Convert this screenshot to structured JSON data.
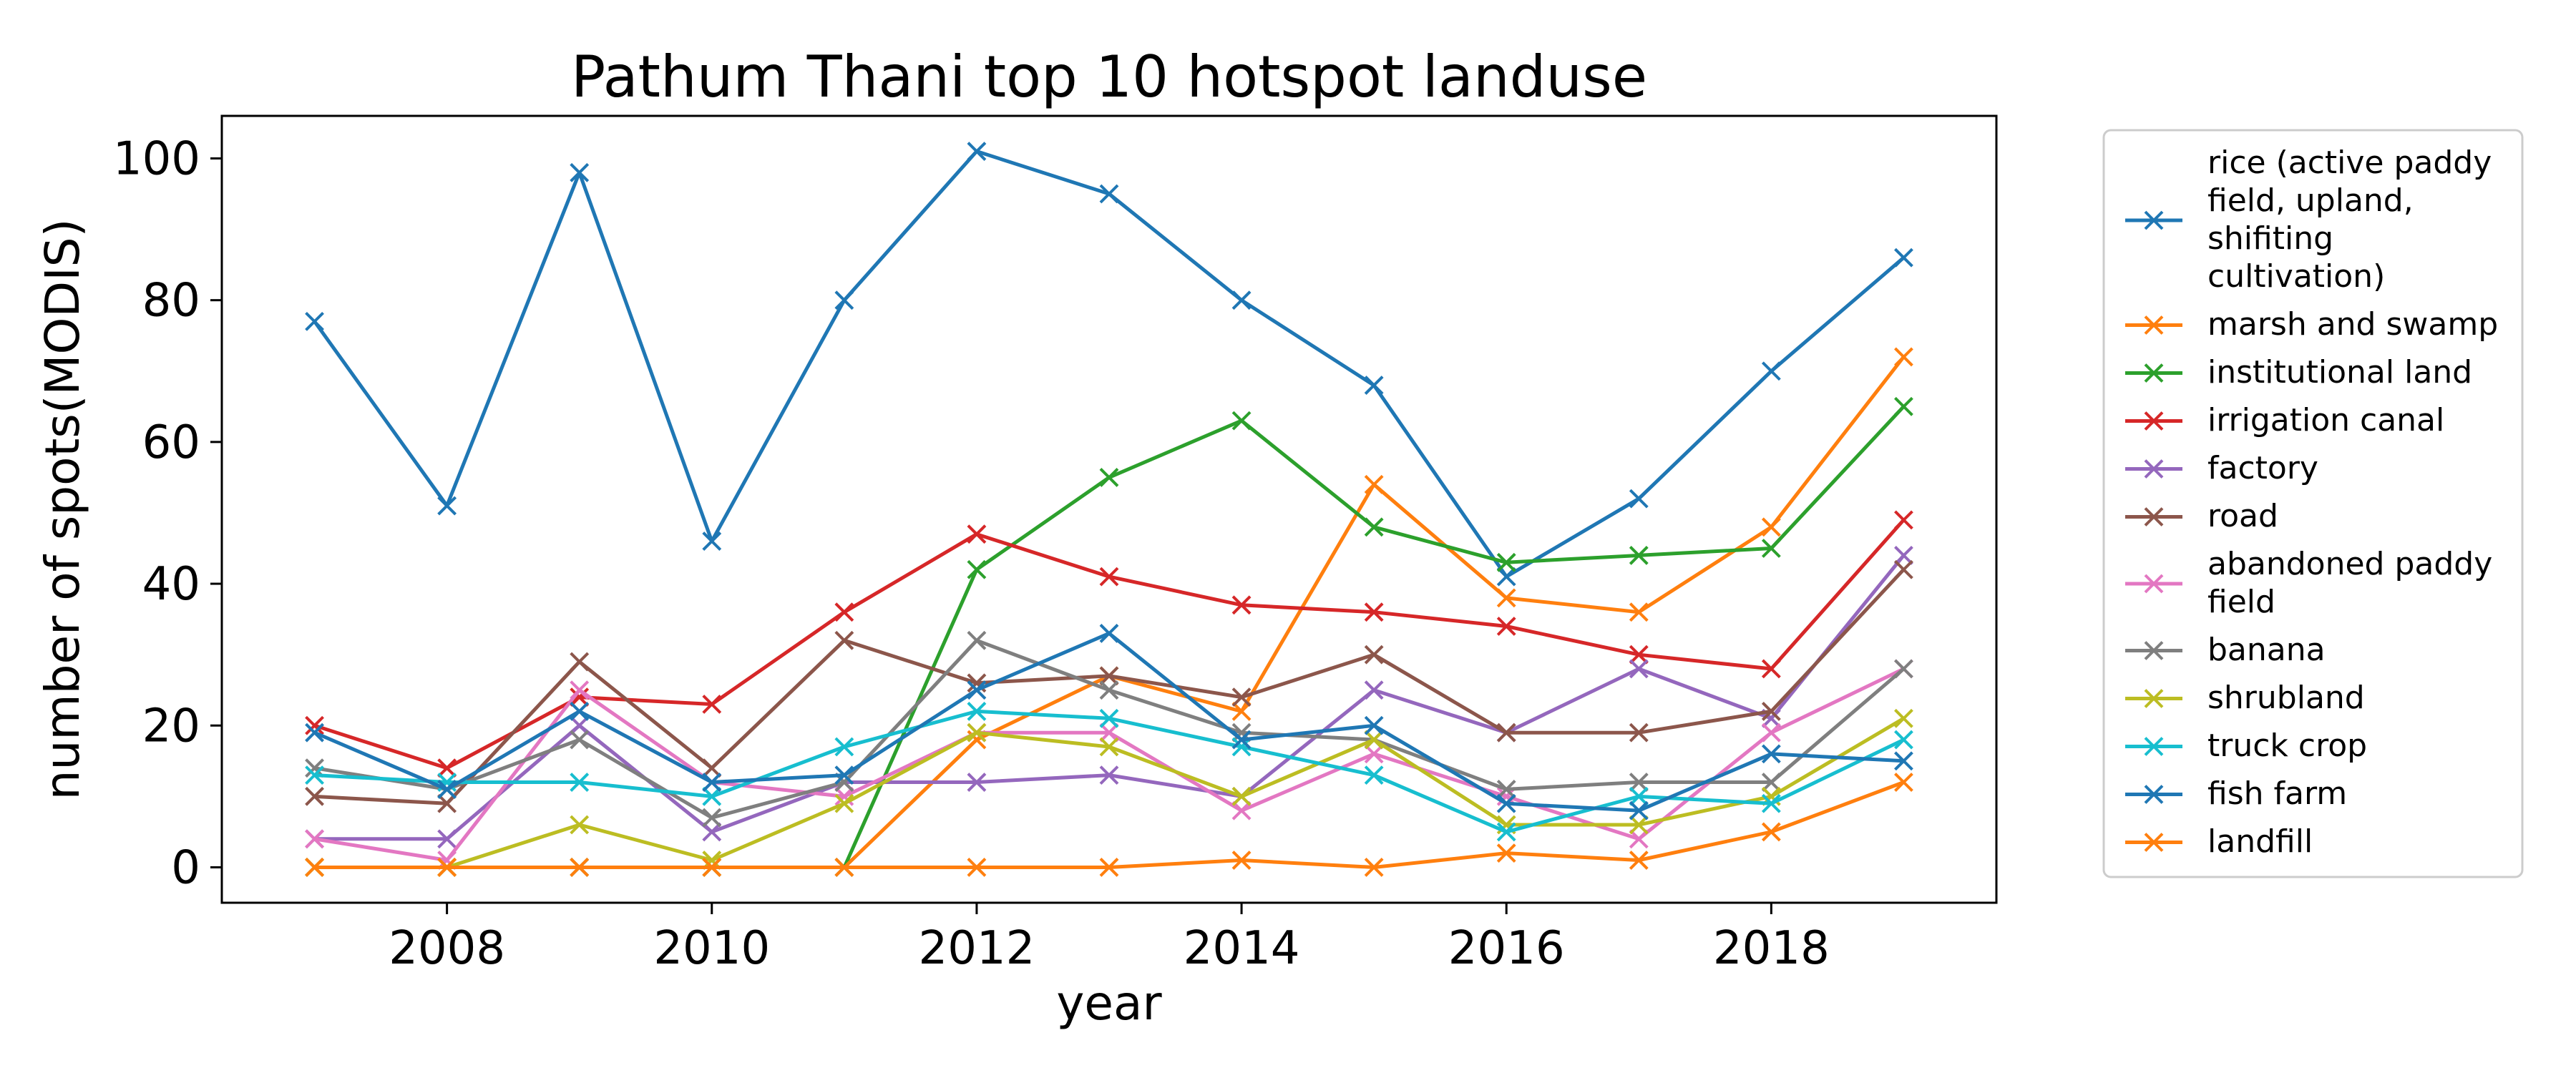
{
  "chart_data": {
    "type": "line",
    "title": "Pathum Thani top 10 hotspot landuse",
    "xlabel": "year",
    "ylabel": "number of spots(MODIS)",
    "xlim": [
      2006.3,
      2019.7
    ],
    "ylim": [
      -5,
      106
    ],
    "xticks": [
      2008,
      2010,
      2012,
      2014,
      2016,
      2018
    ],
    "yticks": [
      0,
      20,
      40,
      60,
      80,
      100
    ],
    "grid": false,
    "legend_position": "outside-right",
    "marker": "x",
    "x": [
      2007,
      2008,
      2009,
      2010,
      2011,
      2012,
      2013,
      2014,
      2015,
      2016,
      2017,
      2018,
      2019
    ],
    "series": [
      {
        "name": "rice (active paddy field, upland, shifiting cultivation)",
        "legend_lines": [
          "rice (active paddy",
          "field, upland,",
          "shifiting",
          "cultivation)"
        ],
        "color": "#1f77b4",
        "values": [
          77,
          51,
          98,
          46,
          80,
          101,
          95,
          80,
          68,
          41,
          52,
          70,
          86
        ]
      },
      {
        "name": "marsh and swamp",
        "legend_lines": [
          "marsh and swamp"
        ],
        "color": "#ff7f0e",
        "values": [
          0,
          0,
          0,
          0,
          0,
          18,
          27,
          22,
          54,
          38,
          36,
          48,
          72
        ]
      },
      {
        "name": "institutional land",
        "legend_lines": [
          "institutional land"
        ],
        "color": "#2ca02c",
        "values": [
          0,
          0,
          0,
          0,
          0,
          42,
          55,
          63,
          48,
          43,
          44,
          45,
          65
        ]
      },
      {
        "name": "irrigation canal",
        "legend_lines": [
          "irrigation canal"
        ],
        "color": "#d62728",
        "values": [
          20,
          14,
          24,
          23,
          36,
          47,
          41,
          37,
          36,
          34,
          30,
          28,
          49
        ]
      },
      {
        "name": "factory",
        "legend_lines": [
          "factory"
        ],
        "color": "#9467bd",
        "values": [
          4,
          4,
          20,
          5,
          12,
          12,
          13,
          10,
          25,
          19,
          28,
          21,
          44
        ]
      },
      {
        "name": "road",
        "legend_lines": [
          "road"
        ],
        "color": "#8c564b",
        "values": [
          10,
          9,
          29,
          14,
          32,
          26,
          27,
          24,
          30,
          19,
          19,
          22,
          42
        ]
      },
      {
        "name": "abandoned paddy field",
        "legend_lines": [
          "abandoned paddy",
          "field"
        ],
        "color": "#e377c2",
        "values": [
          4,
          1,
          25,
          12,
          10,
          19,
          19,
          8,
          16,
          10,
          4,
          19,
          28
        ]
      },
      {
        "name": "banana",
        "legend_lines": [
          "banana"
        ],
        "color": "#7f7f7f",
        "values": [
          14,
          11,
          18,
          7,
          12,
          32,
          25,
          19,
          18,
          11,
          12,
          12,
          28
        ]
      },
      {
        "name": "shrubland",
        "legend_lines": [
          "shrubland"
        ],
        "color": "#bcbd22",
        "values": [
          0,
          0,
          6,
          1,
          9,
          19,
          17,
          10,
          18,
          6,
          6,
          10,
          21
        ]
      },
      {
        "name": "truck crop",
        "legend_lines": [
          "truck crop"
        ],
        "color": "#17becf",
        "values": [
          13,
          12,
          12,
          10,
          17,
          22,
          21,
          17,
          13,
          5,
          10,
          9,
          18
        ]
      },
      {
        "name": "fish farm",
        "legend_lines": [
          "fish farm"
        ],
        "color": "#1f77b4",
        "values": [
          19,
          11,
          22,
          12,
          13,
          25,
          33,
          18,
          20,
          9,
          8,
          16,
          15
        ]
      },
      {
        "name": "landfill",
        "legend_lines": [
          "landfill"
        ],
        "color": "#ff7f0e",
        "values": [
          0,
          0,
          0,
          0,
          0,
          0,
          0,
          1,
          0,
          2,
          1,
          5,
          12
        ]
      }
    ]
  }
}
